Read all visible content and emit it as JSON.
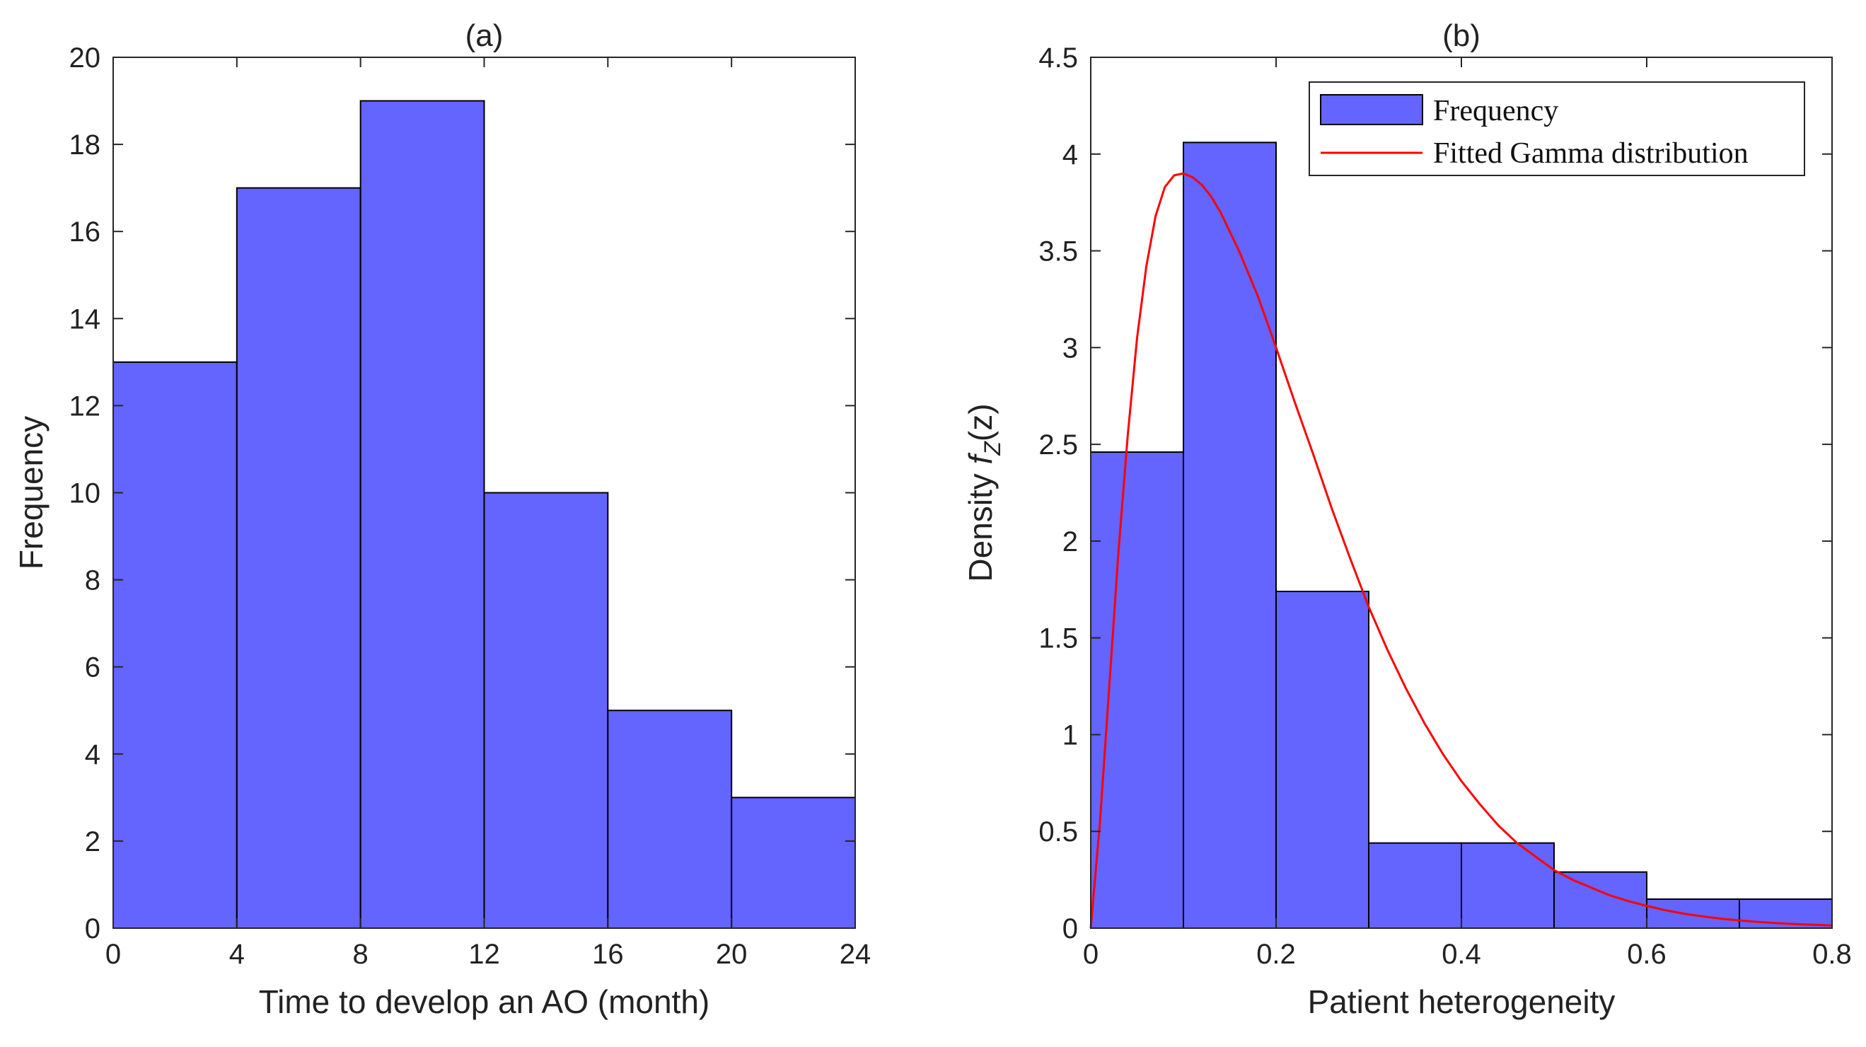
{
  "colors": {
    "bar_fill": "#6464ff",
    "bar_edge": "#000000",
    "fit_line": "#ff0000",
    "axes": "#262626"
  },
  "chart_data": [
    {
      "type": "bar",
      "title": "(a)",
      "xlabel": "Time to develop an AO (month)",
      "ylabel": "Frequency",
      "xlim": [
        0,
        24
      ],
      "ylim": [
        0,
        20
      ],
      "bin_edges": [
        0,
        4,
        8,
        12,
        16,
        20,
        24
      ],
      "values": [
        13,
        17,
        19,
        10,
        5,
        3
      ],
      "xticks": [
        0,
        4,
        8,
        12,
        16,
        20,
        24
      ],
      "xtick_labels": [
        "0",
        "4",
        "8",
        "12",
        "16",
        "20",
        "24"
      ],
      "yticks": [
        0,
        2,
        4,
        6,
        8,
        10,
        12,
        14,
        16,
        18,
        20
      ],
      "ytick_labels": [
        "0",
        "2",
        "4",
        "6",
        "8",
        "10",
        "12",
        "14",
        "16",
        "18",
        "20"
      ],
      "grid": false
    },
    {
      "type": "bar",
      "title": "(b)",
      "xlabel": "Patient heterogeneity",
      "ylabel_parts": [
        "Density ",
        "f",
        "Z",
        "(z)"
      ],
      "xlim": [
        0,
        0.8
      ],
      "ylim": [
        0,
        4.5
      ],
      "bin_edges": [
        0,
        0.1,
        0.2,
        0.3,
        0.4,
        0.5,
        0.6,
        0.7,
        0.8
      ],
      "values": [
        2.46,
        4.06,
        1.74,
        0.44,
        0.44,
        0.29,
        0.15,
        0.15
      ],
      "xticks": [
        0,
        0.2,
        0.4,
        0.6,
        0.8
      ],
      "xtick_labels": [
        "0",
        "0.2",
        "0.4",
        "0.6",
        "0.8"
      ],
      "yticks": [
        0,
        0.5,
        1,
        1.5,
        2,
        2.5,
        3,
        3.5,
        4,
        4.5
      ],
      "ytick_labels": [
        "0",
        "0.5",
        "1",
        "1.5",
        "2",
        "2.5",
        "3",
        "3.5",
        "4",
        "4.5"
      ],
      "series": [
        {
          "name": "Fitted Gamma distribution",
          "type": "line",
          "x": [
            0,
            0.01,
            0.02,
            0.03,
            0.04,
            0.05,
            0.06,
            0.07,
            0.08,
            0.09,
            0.1,
            0.11,
            0.12,
            0.13,
            0.14,
            0.16,
            0.18,
            0.2,
            0.22,
            0.24,
            0.26,
            0.28,
            0.3,
            0.32,
            0.34,
            0.36,
            0.38,
            0.4,
            0.42,
            0.44,
            0.46,
            0.48,
            0.5,
            0.52,
            0.54,
            0.56,
            0.58,
            0.6,
            0.62,
            0.64,
            0.66,
            0.68,
            0.7,
            0.72,
            0.74,
            0.76,
            0.78,
            0.8
          ],
          "y": [
            0,
            0.55,
            1.25,
            1.95,
            2.55,
            3.05,
            3.42,
            3.68,
            3.83,
            3.89,
            3.9,
            3.88,
            3.84,
            3.78,
            3.7,
            3.5,
            3.27,
            3.0,
            2.72,
            2.45,
            2.17,
            1.91,
            1.66,
            1.44,
            1.24,
            1.06,
            0.9,
            0.76,
            0.64,
            0.53,
            0.44,
            0.37,
            0.3,
            0.25,
            0.21,
            0.17,
            0.14,
            0.115,
            0.093,
            0.075,
            0.061,
            0.049,
            0.04,
            0.032,
            0.026,
            0.021,
            0.017,
            0.014
          ]
        }
      ],
      "legend": {
        "position": "top-right",
        "entries": [
          "Frequency",
          "Fitted Gamma distribution"
        ]
      },
      "grid": false
    }
  ]
}
